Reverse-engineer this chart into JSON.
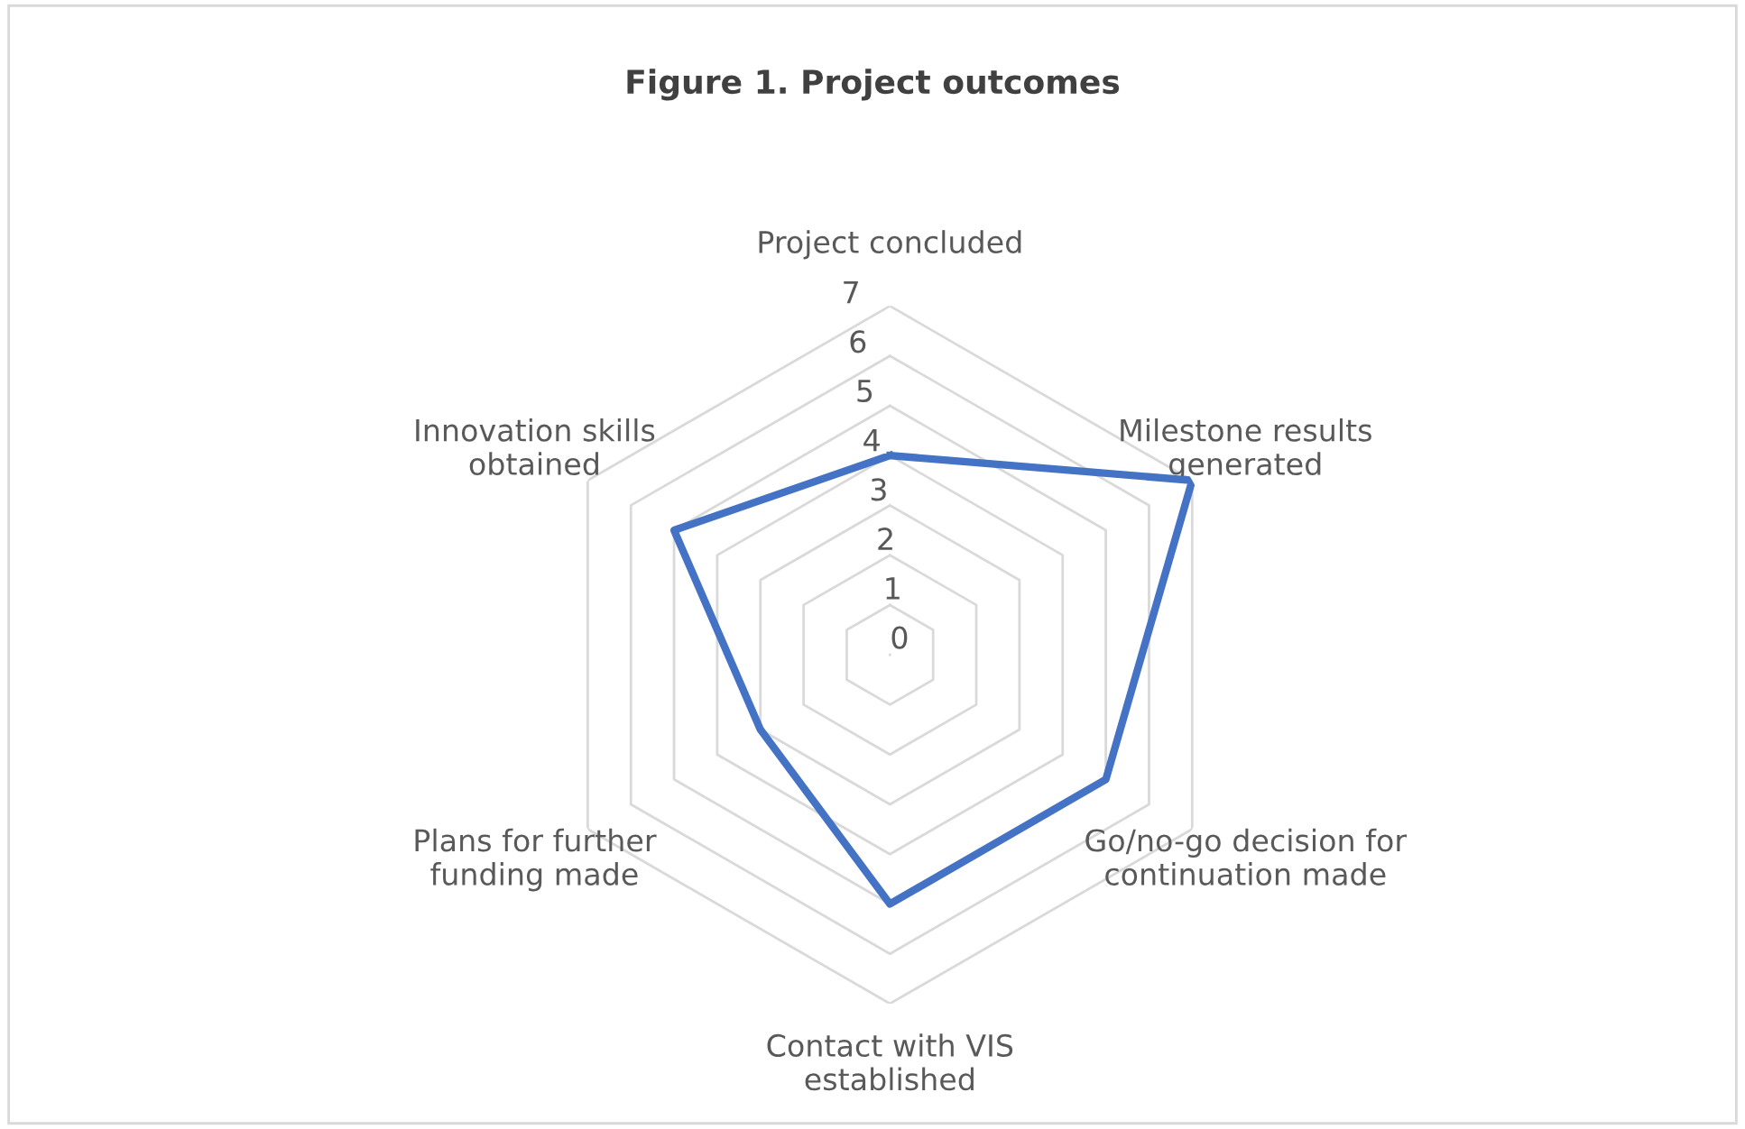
{
  "chart_data": {
    "type": "radar",
    "title": "Figure 1. Project outcomes",
    "categories": [
      "Project concluded",
      "Milestone results\ngenerated",
      "Go/no-go decision for\ncontinuation made",
      "Contact with VIS\nestablished",
      "Plans for further\nfunding made",
      "Innovation skills\nobtained"
    ],
    "series": [
      {
        "color": "#4472c4",
        "values": [
          4,
          7,
          5,
          5,
          3,
          5
        ]
      }
    ],
    "ylim": [
      0,
      7
    ],
    "yticks": [
      0,
      1,
      2,
      3,
      4,
      5,
      6,
      7
    ],
    "grid": true,
    "legend": false
  }
}
